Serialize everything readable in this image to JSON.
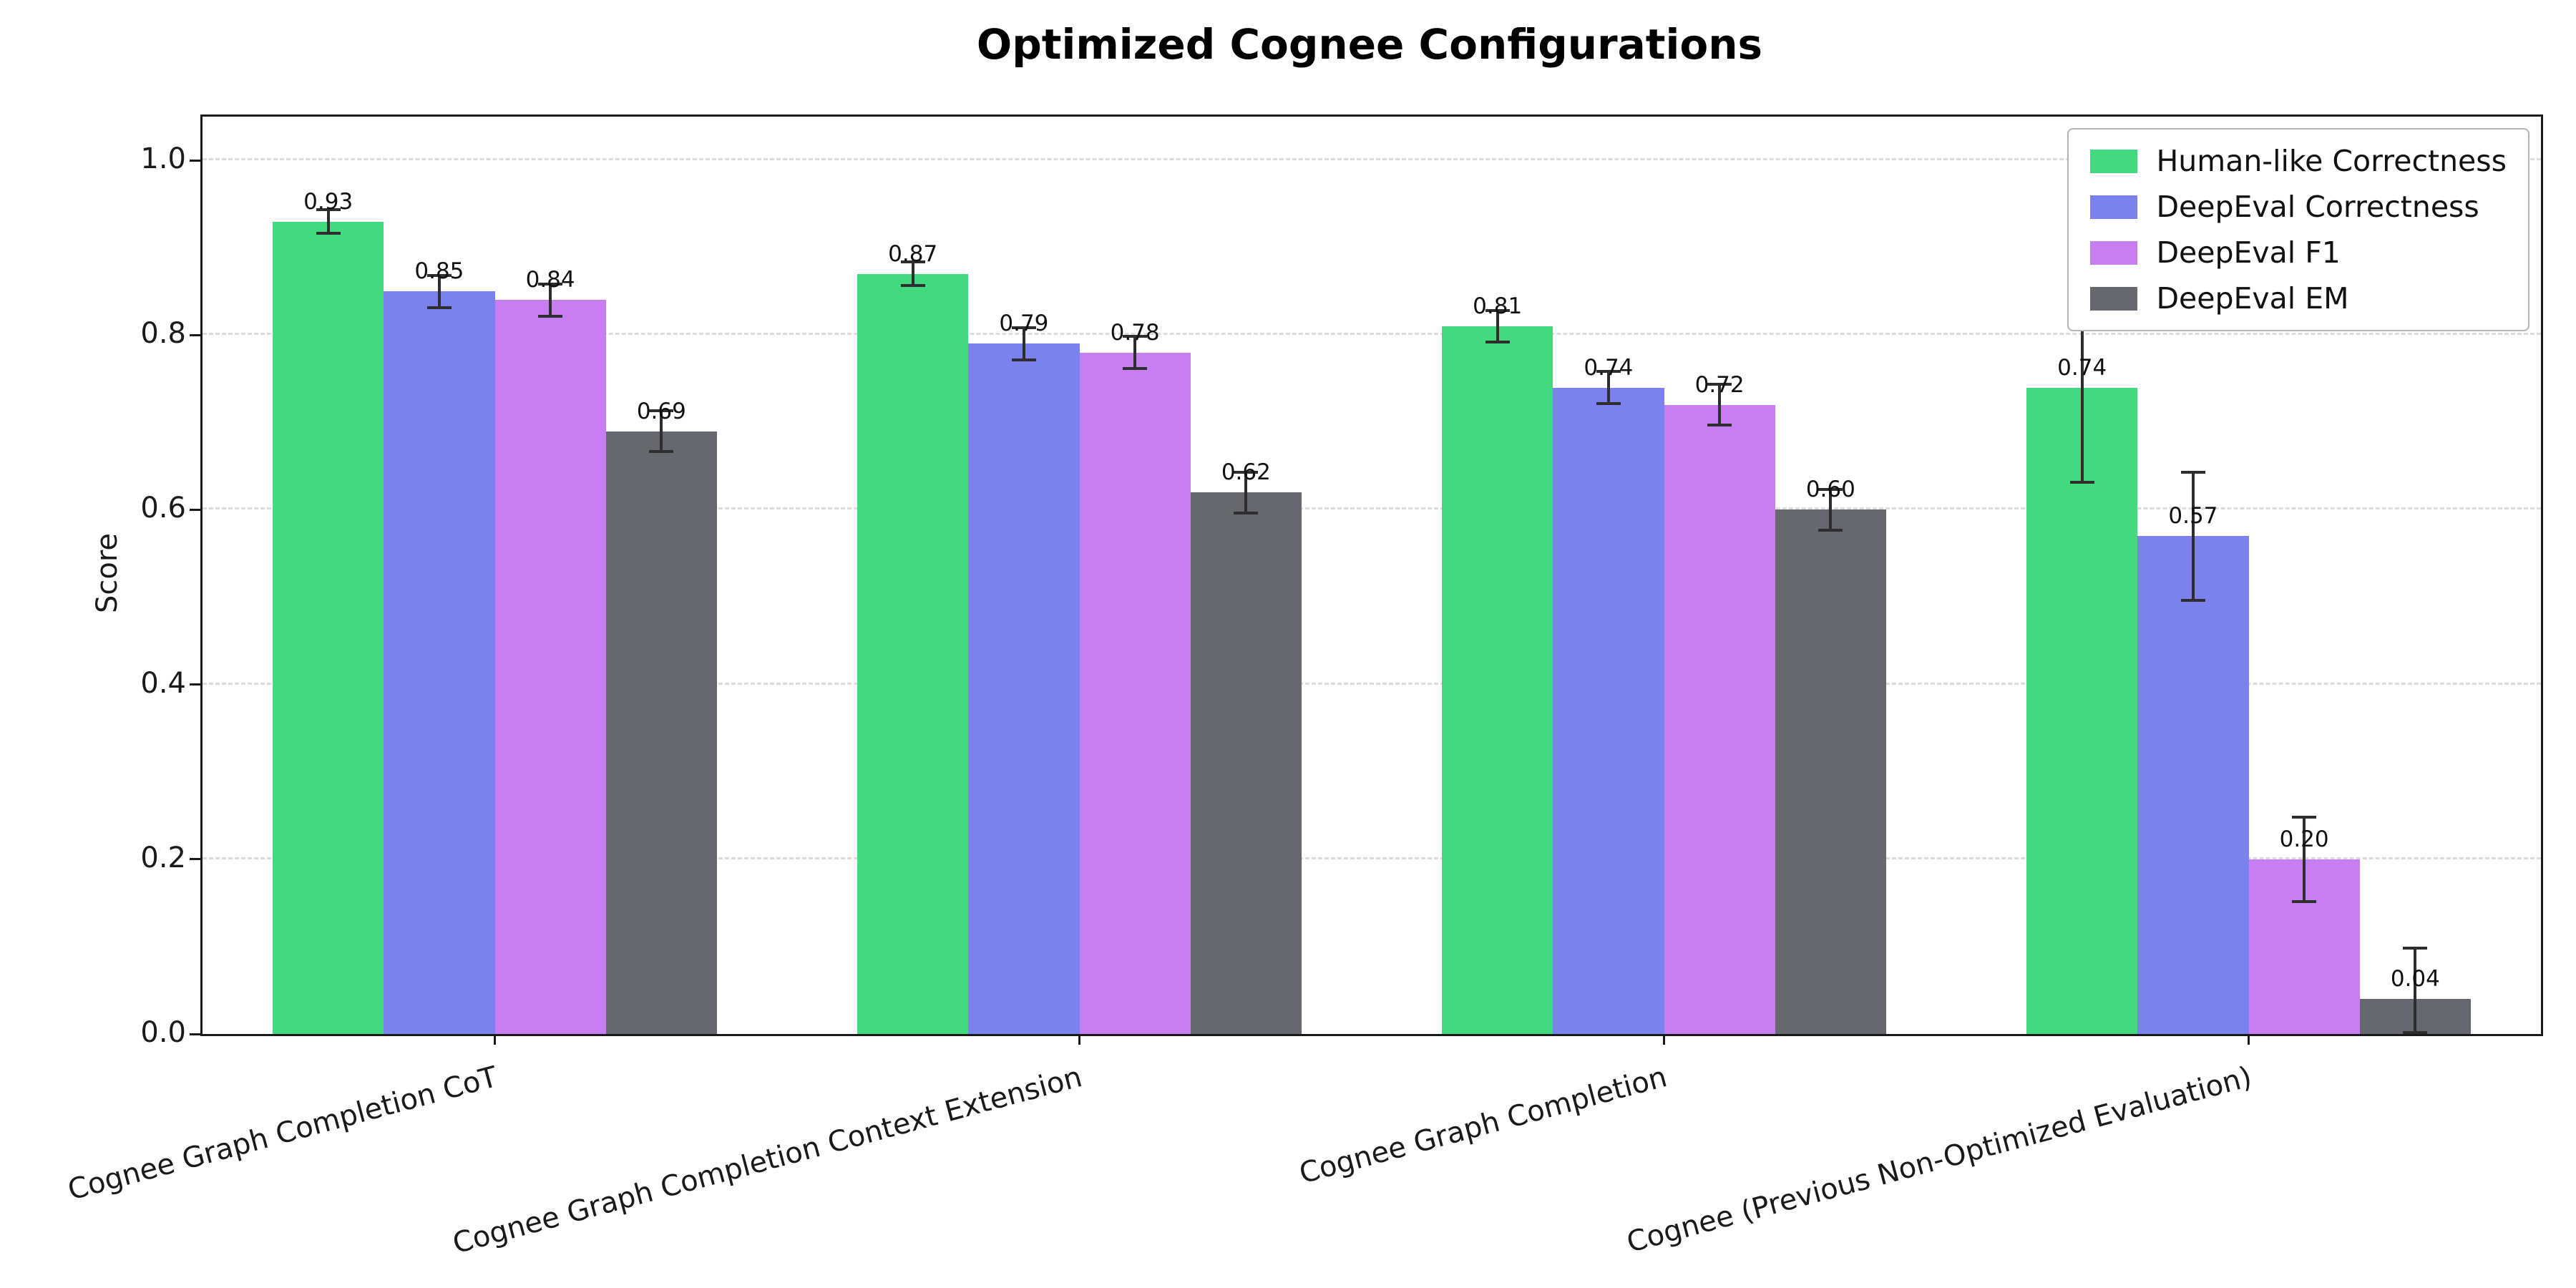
{
  "chart_data": {
    "type": "bar",
    "title": "Optimized Cognee Configurations",
    "xlabel": "",
    "ylabel": "Score",
    "ylim": [
      0,
      1.05
    ],
    "yticks": [
      0.0,
      0.2,
      0.4,
      0.6,
      0.8,
      1.0
    ],
    "grid": "horizontal-dashed",
    "legend_position": "upper right",
    "error_bars": true,
    "categories": [
      "Cognee Graph Completion CoT",
      "Cognee Graph Completion Context Extension",
      "Cognee Graph Completion",
      "Cognee (Previous Non-Optimized Evaluation)"
    ],
    "series": [
      {
        "name": "Human-like Correctness",
        "color": "#42d97f",
        "values": [
          0.93,
          0.87,
          0.81,
          0.74
        ],
        "errors": [
          0.015,
          0.015,
          0.02,
          0.11
        ]
      },
      {
        "name": "DeepEval Correctness",
        "color": "#7b82ef",
        "values": [
          0.85,
          0.79,
          0.74,
          0.57
        ],
        "errors": [
          0.02,
          0.02,
          0.02,
          0.075
        ]
      },
      {
        "name": "DeepEval F1",
        "color": "#c67ef1",
        "values": [
          0.84,
          0.78,
          0.72,
          0.2
        ],
        "errors": [
          0.02,
          0.02,
          0.025,
          0.05
        ]
      },
      {
        "name": "DeepEval EM",
        "color": "#65686f",
        "values": [
          0.69,
          0.62,
          0.6,
          0.04
        ],
        "errors": [
          0.025,
          0.025,
          0.025,
          0.06
        ]
      }
    ]
  }
}
